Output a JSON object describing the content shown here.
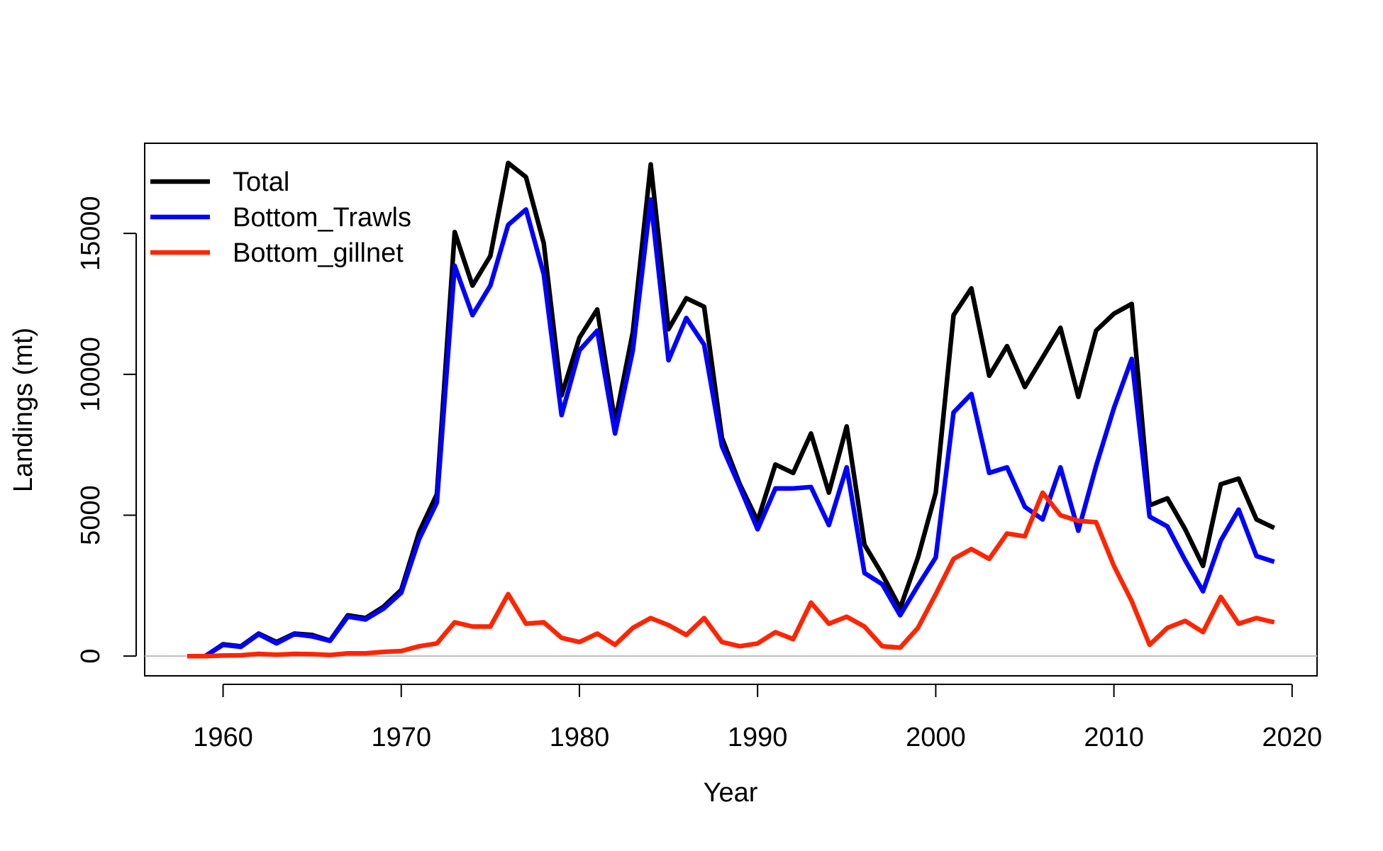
{
  "chart_data": {
    "type": "line",
    "title": "",
    "xlabel": "Year",
    "ylabel": "Landings (mt)",
    "xlim": [
      1955.6,
      2021.4
    ],
    "ylim": [
      -700,
      18200
    ],
    "xticks": [
      1960,
      1970,
      1980,
      1990,
      2000,
      2010,
      2020
    ],
    "yticks": [
      0,
      5000,
      10000,
      15000
    ],
    "xtick_labels": [
      "1960",
      "1970",
      "1980",
      "1990",
      "2000",
      "2010",
      "2020"
    ],
    "ytick_labels": [
      "0",
      "5000",
      "10000",
      "15000"
    ],
    "grid": false,
    "baseline": {
      "y": 0,
      "color": "#bebebe"
    },
    "legend_position": "top-left",
    "x": [
      1958,
      1959,
      1960,
      1961,
      1962,
      1963,
      1964,
      1965,
      1966,
      1967,
      1968,
      1969,
      1970,
      1971,
      1972,
      1973,
      1974,
      1975,
      1976,
      1977,
      1978,
      1979,
      1980,
      1981,
      1982,
      1983,
      1984,
      1985,
      1986,
      1987,
      1988,
      1989,
      1990,
      1991,
      1992,
      1993,
      1994,
      1995,
      1996,
      1997,
      1998,
      1999,
      2000,
      2001,
      2002,
      2003,
      2004,
      2005,
      2006,
      2007,
      2008,
      2009,
      2010,
      2011,
      2012,
      2013,
      2014,
      2015,
      2016,
      2017,
      2018,
      2019
    ],
    "series": [
      {
        "name": "Total",
        "color": "#000000",
        "values": [
          0,
          0,
          420,
          350,
          800,
          500,
          800,
          750,
          550,
          1450,
          1350,
          1750,
          2350,
          4400,
          5750,
          15050,
          13150,
          14200,
          17500,
          17000,
          14650,
          9250,
          11300,
          12300,
          8300,
          11500,
          17450,
          11600,
          12700,
          12400,
          7750,
          6100,
          4800,
          6800,
          6500,
          7900,
          5800,
          8150,
          3950,
          2900,
          1700,
          3500,
          5800,
          12100,
          13050,
          9950,
          11000,
          9550,
          10600,
          11650,
          9200,
          11550,
          12150,
          12500,
          5350,
          5600,
          4500,
          3200,
          6100,
          6300,
          4850,
          4550
        ]
      },
      {
        "name": "Bottom_Trawls",
        "color": "#0000ff",
        "values": [
          0,
          0,
          400,
          330,
          780,
          450,
          780,
          700,
          540,
          1400,
          1300,
          1680,
          2250,
          4150,
          5450,
          13850,
          12100,
          13150,
          15300,
          15850,
          13550,
          8550,
          10850,
          11550,
          7900,
          10850,
          16200,
          10500,
          12000,
          11050,
          7450,
          6000,
          4500,
          5950,
          5950,
          6000,
          4650,
          6700,
          2950,
          2550,
          1450,
          2500,
          3500,
          8650,
          9300,
          6500,
          6700,
          5300,
          4850,
          6700,
          4450,
          6750,
          8800,
          10550,
          4950,
          4600,
          3400,
          2300,
          4100,
          5200,
          3550,
          3350
        ]
      },
      {
        "name": "Bottom_gillnet",
        "color": "#ff2500",
        "values": [
          0,
          0,
          20,
          30,
          80,
          50,
          80,
          70,
          40,
          100,
          100,
          150,
          180,
          350,
          450,
          1200,
          1050,
          1050,
          2200,
          1150,
          1200,
          650,
          500,
          800,
          400,
          1000,
          1350,
          1100,
          750,
          1350,
          500,
          350,
          450,
          850,
          600,
          1900,
          1150,
          1400,
          1050,
          350,
          300,
          1000,
          2200,
          3450,
          3800,
          3450,
          4350,
          4250,
          5800,
          5000,
          4800,
          4750,
          3200,
          1950,
          400,
          1000,
          1250,
          850,
          2100,
          1150,
          1350,
          1200
        ]
      }
    ]
  }
}
